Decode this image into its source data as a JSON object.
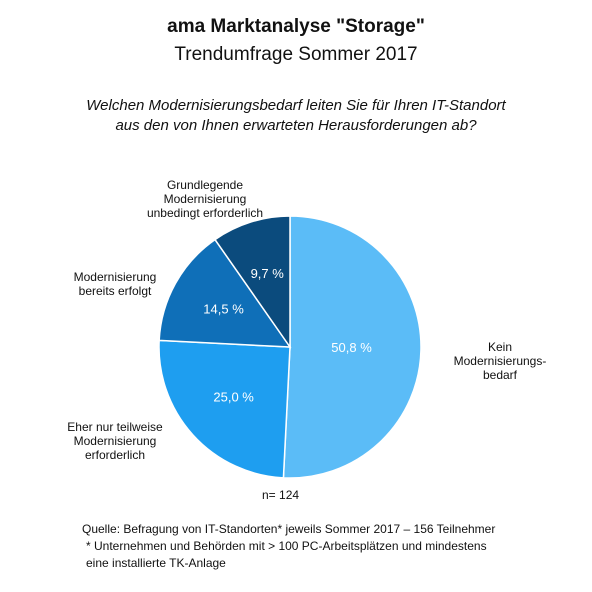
{
  "chart_data": {
    "type": "pie",
    "title": "ama Marktanalyse \"Storage\"",
    "subtitle": "Trendumfrage  Sommer 2017",
    "question": "Welchen Modernisierungsbedarf leiten Sie für Ihren IT-Standort\naus den von Ihnen erwarteten Herausforderungen ab?",
    "categories": [
      "Kein\nModernisierungs-\nbedarf",
      "Eher nur teilweise\nModernisierung\nerforderlich",
      "Modernisierung\nbereits erfolgt",
      "Grundlegende\nModernisierung\nunbedingt erforderlich"
    ],
    "values": [
      50.8,
      25.0,
      14.5,
      9.7
    ],
    "value_labels": [
      "50,8 %",
      "25,0 %",
      "14,5 %",
      "9,7 %"
    ],
    "colors": [
      "#5bbcf7",
      "#1e9ef0",
      "#0f6fb8",
      "#0b4b7d"
    ],
    "annotation": "n= 124",
    "source": "Quelle: Befragung von IT-Standorten* jeweils Sommer 2017 – 156 Teilnehmer",
    "footnote": "* Unternehmen und Behörden mit > 100 PC-Arbeitsplätzen und mindestens\neine installierte TK-Anlage"
  }
}
